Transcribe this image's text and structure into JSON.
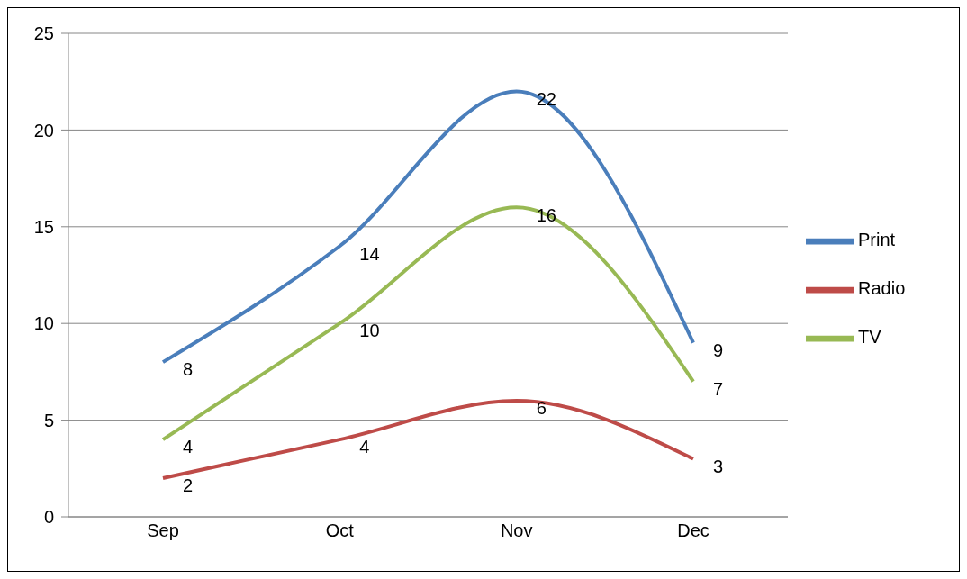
{
  "chart_data": {
    "type": "line",
    "categories": [
      "Sep",
      "Oct",
      "Nov",
      "Dec"
    ],
    "series": [
      {
        "name": "Print",
        "color": "#4a7ebb",
        "values": [
          8,
          14,
          22,
          9
        ]
      },
      {
        "name": "Radio",
        "color": "#be4b48",
        "values": [
          2,
          4,
          6,
          3
        ]
      },
      {
        "name": "TV",
        "color": "#98b954",
        "values": [
          4,
          10,
          16,
          7
        ]
      }
    ],
    "ylim": [
      0,
      25
    ],
    "yticks": [
      0,
      5,
      10,
      15,
      20,
      25
    ],
    "grid": "y",
    "legend": "right",
    "data_labels": true
  }
}
